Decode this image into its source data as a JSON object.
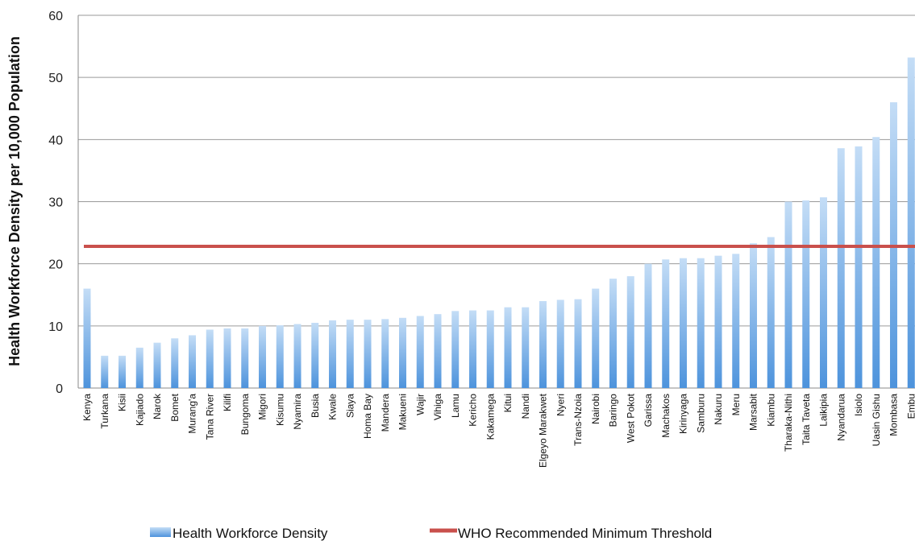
{
  "chart_data": {
    "type": "bar",
    "title": "",
    "xlabel": "",
    "ylabel": "Health Workforce Density per 10,000 Population",
    "ylim": [
      0,
      60
    ],
    "yticks": [
      0,
      10,
      20,
      30,
      40,
      50,
      60
    ],
    "grid": true,
    "legend_position": "bottom",
    "categories": [
      "Kenya",
      "Turkana",
      "Kisii",
      "Kajiado",
      "Narok",
      "Bomet",
      "Murang'a",
      "Tana River",
      "Kilifi",
      "Bungoma",
      "Migori",
      "Kisumu",
      "Nyamira",
      "Busia",
      "Kwale",
      "Siaya",
      "Homa Bay",
      "Mandera",
      "Makueni",
      "Wajir",
      "Vihiga",
      "Lamu",
      "Kericho",
      "Kakamega",
      "Kitui",
      "Nandi",
      "Elgeyo Marakwet",
      "Nyeri",
      "Trans-Nzoia",
      "Nairobi",
      "Baringo",
      "West Pokot",
      "Garissa",
      "Machakos",
      "Kirinyaga",
      "Samburu",
      "Nakuru",
      "Meru",
      "Marsabit",
      "Kiambu",
      "Tharaka-Nithi",
      "Taita Taveta",
      "Laikipia",
      "Nyandarua",
      "Isiolo",
      "Uasin Gishu",
      "Mombasa",
      "Embu"
    ],
    "series": [
      {
        "name": "Health Workforce Density",
        "type": "bar",
        "color": "#5a9fe0",
        "values": [
          16.0,
          5.2,
          5.2,
          6.5,
          7.3,
          8.0,
          8.5,
          9.4,
          9.6,
          9.6,
          10.0,
          10.1,
          10.3,
          10.5,
          10.9,
          11.0,
          11.0,
          11.1,
          11.3,
          11.6,
          11.9,
          12.4,
          12.5,
          12.5,
          13.0,
          13.0,
          14.0,
          14.2,
          14.3,
          16.0,
          17.6,
          18.0,
          20.0,
          20.7,
          20.9,
          20.9,
          21.3,
          21.6,
          23.3,
          24.3,
          30.0,
          30.2,
          30.7,
          38.6,
          38.9,
          40.4,
          46.0,
          53.2
        ]
      },
      {
        "name": "WHO Recommended Minimum Threshold",
        "type": "line",
        "color": "#c9504c",
        "value": 22.8
      }
    ]
  }
}
